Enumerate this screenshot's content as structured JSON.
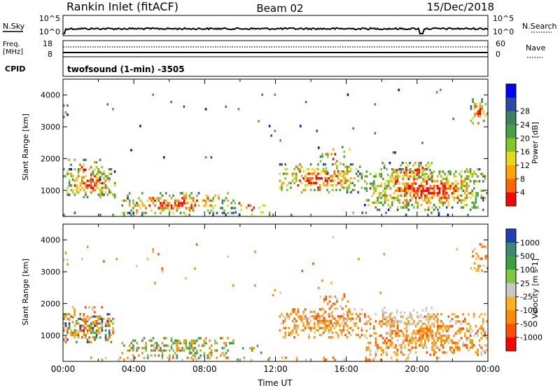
{
  "header": {
    "station": "Rankin Inlet (fitACF)",
    "beam": "Beam 02",
    "date": "15/Dec/2018"
  },
  "noise_panel": {
    "left_label": "N.Sky",
    "right_label": "N.Search",
    "left_ticks": [
      "10^5",
      "10^0"
    ],
    "right_ticks": [
      "10^5",
      "10^0"
    ]
  },
  "freq_panel": {
    "left_label_1": "Freq.",
    "left_label_2": "[MHz]",
    "left_ticks": [
      "18",
      "8"
    ],
    "right_label": "Nave",
    "right_ticks": [
      "60",
      "0"
    ]
  },
  "cpid_panel": {
    "label": "CPID",
    "program": "twofsound (1-min) -3505"
  },
  "chart_data": [
    {
      "type": "heatmap",
      "name": "power",
      "ylabel": "Slant Range [km]",
      "xlabel": "",
      "ylim": [
        180,
        4500
      ],
      "yticks": [
        "1000",
        "2000",
        "3000",
        "4000"
      ],
      "colorbar_label": "Power [dB]",
      "colorbar_ticks": [
        "4",
        "8",
        "12",
        "16",
        "20",
        "24",
        "28"
      ],
      "colorbar_colors": [
        "#0000ff",
        "#2a4aa0",
        "#3e8060",
        "#44a040",
        "#7ec828",
        "#e6d81a",
        "#ffa500",
        "#ff6600",
        "#ff0000"
      ]
    },
    {
      "type": "heatmap",
      "name": "velocity",
      "ylabel": "Slant Range [km]",
      "xlabel": "Time UT",
      "ylim": [
        180,
        4500
      ],
      "yticks": [
        "1000",
        "2000",
        "3000",
        "4000"
      ],
      "xticks": [
        "00:00",
        "04:00",
        "08:00",
        "12:00",
        "16:00",
        "20:00",
        "00:00"
      ],
      "colorbar_label": "Velocity [m s-1]",
      "colorbar_ticks": [
        "1000",
        "500",
        "100",
        "25",
        "-25",
        "-100",
        "-500",
        "-1000"
      ],
      "colorbar_colors": [
        "#2040b0",
        "#3a8a70",
        "#3ca040",
        "#80c840",
        "#c8c8c8",
        "#ffb020",
        "#ff8c00",
        "#ff5000",
        "#ff0000"
      ]
    }
  ]
}
